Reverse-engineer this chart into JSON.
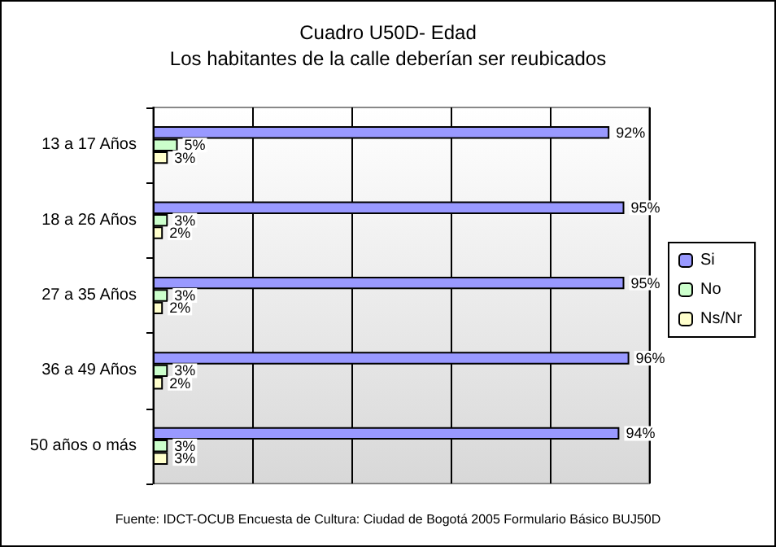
{
  "chart_data": {
    "type": "bar",
    "orientation": "horizontal",
    "title": "Cuadro U50D- Edad",
    "subtitle": "Los habitantes de la calle deberían ser reubicados",
    "categories": [
      "13 a 17 Años",
      "18 a 26 Años",
      "27 a 35 Años",
      "36 a 49 Años",
      "50 años o más"
    ],
    "series": [
      {
        "name": "Si",
        "color": "#9999ff",
        "values": [
          92,
          95,
          95,
          96,
          94
        ],
        "value_labels": [
          "92%",
          "95%",
          "95%",
          "96%",
          "94%"
        ]
      },
      {
        "name": "No",
        "color": "#ccffcc",
        "values": [
          5,
          3,
          3,
          3,
          3
        ],
        "value_labels": [
          "5%",
          "3%",
          "3%",
          "3%",
          "3%"
        ]
      },
      {
        "name": "Ns/Nr",
        "color": "#ffffcc",
        "values": [
          3,
          2,
          2,
          2,
          3
        ],
        "value_labels": [
          "3%",
          "2%",
          "2%",
          "2%",
          "3%"
        ]
      }
    ],
    "xlim": [
      0,
      100
    ],
    "xticks": [
      {
        "value": 0,
        "label": null
      },
      {
        "value": 20,
        "label": null
      },
      {
        "value": 40,
        "label": null
      },
      {
        "value": 60,
        "label": null
      },
      {
        "value": 80,
        "label": null
      },
      {
        "value": 100,
        "label": null
      }
    ],
    "tick_labels": "y",
    "grid": "x",
    "legend": "right",
    "annotations": [
      "Fuente: IDCT-OCUB Encuesta de Cultura: Ciudad de Bogotá 2005 Formulario Básico BUJ50D"
    ]
  }
}
